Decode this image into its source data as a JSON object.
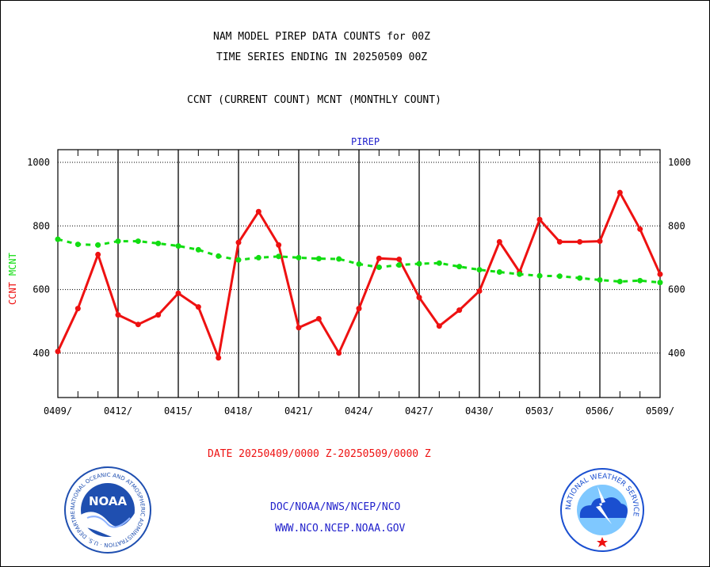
{
  "header": {
    "line1": "NAM MODEL PIREP DATA COUNTS for 00Z",
    "line2": "TIME SERIES ENDING IN 20250509 00Z",
    "line3": "CCNT (CURRENT COUNT) MCNT (MONTHLY COUNT)"
  },
  "footer": {
    "date_range": "DATE 20250409/0000 Z-20250509/0000 Z",
    "org": "DOC/NOAA/NWS/NCEP/NCO",
    "url": "WWW.NCO.NCEP.NOAA.GOV"
  },
  "logos": {
    "noaa": {
      "name": "noaa-logo",
      "center_text": "NOAA",
      "ring_text": "NATIONAL OCEANIC AND ATMOSPHERIC ADMINISTRATION · U.S. DEPARTMENT OF COMMERCE",
      "color": "#1f4fb0"
    },
    "nws": {
      "name": "nws-logo",
      "ring_text": "NATIONAL WEATHER SERVICE",
      "color": "#1a4fd0"
    }
  },
  "colors": {
    "ccnt": "#ee1111",
    "mcnt": "#11dd11",
    "title_blue": "#2222cc",
    "footer_red": "#ee1111",
    "footer_blue": "#2222cc",
    "grid": "#000000"
  },
  "chart_data": {
    "type": "line",
    "title": "PIREP",
    "ylabel_series": [
      {
        "text": "CCNT",
        "color": "#ee1111"
      },
      {
        "text": "MCNT",
        "color": "#11dd11"
      }
    ],
    "ylim": [
      260,
      1040
    ],
    "yticks": [
      400,
      600,
      800,
      1000
    ],
    "x_tick_labels": [
      "0409/",
      "0412/",
      "0415/",
      "0418/",
      "0421/",
      "0424/",
      "0427/",
      "0430/",
      "0503/",
      "0506/",
      "0509/"
    ],
    "x_count": 31,
    "series": [
      {
        "key": "ccnt",
        "style": "solid",
        "values": [
          405,
          540,
          710,
          520,
          490,
          520,
          588,
          545,
          385,
          748,
          845,
          740,
          480,
          508,
          400,
          540,
          698,
          695,
          575,
          485,
          535,
          595,
          750,
          655,
          820,
          750,
          750,
          752,
          905,
          790,
          648
        ]
      },
      {
        "key": "mcnt",
        "style": "dashed",
        "values": [
          758,
          742,
          740,
          752,
          752,
          745,
          737,
          725,
          705,
          693,
          700,
          704,
          700,
          697,
          696,
          680,
          670,
          677,
          681,
          683,
          672,
          662,
          655,
          648,
          643,
          642,
          636,
          630,
          625,
          628,
          622
        ]
      }
    ]
  }
}
